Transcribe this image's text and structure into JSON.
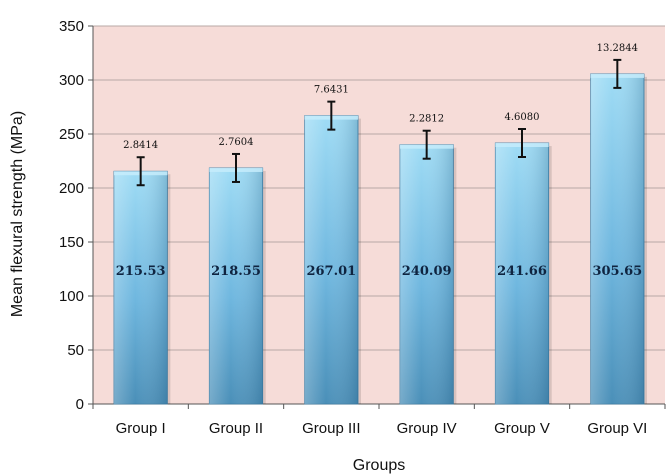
{
  "chart_data": {
    "type": "bar",
    "title": "",
    "xlabel": "Groups",
    "ylabel": "Mean flexural strength (MPa)",
    "ylim": [
      0,
      350
    ],
    "yticks": [
      0,
      50,
      100,
      150,
      200,
      250,
      300,
      350
    ],
    "grid": true,
    "categories": [
      "Group I",
      "Group II",
      "Group III",
      "Group IV",
      "Group V",
      "Group VI"
    ],
    "values": [
      215.53,
      218.55,
      267.01,
      240.09,
      241.66,
      305.65
    ],
    "value_labels": [
      "215.53",
      "218.55",
      "267.01",
      "240.09",
      "241.66",
      "305.65"
    ],
    "error": [
      2.8414,
      2.7604,
      7.6431,
      2.2812,
      4.608,
      13.2844
    ],
    "error_labels": [
      "2.8414",
      "2.7604",
      "7.6431",
      "2.2812",
      "4.6080",
      "13.2844"
    ],
    "colors": {
      "plot_background": "#f6dcd8",
      "bar_top": "#8fd3f0",
      "bar_bottom": "#4a93bd",
      "gridline": "#b8a8a6"
    }
  }
}
